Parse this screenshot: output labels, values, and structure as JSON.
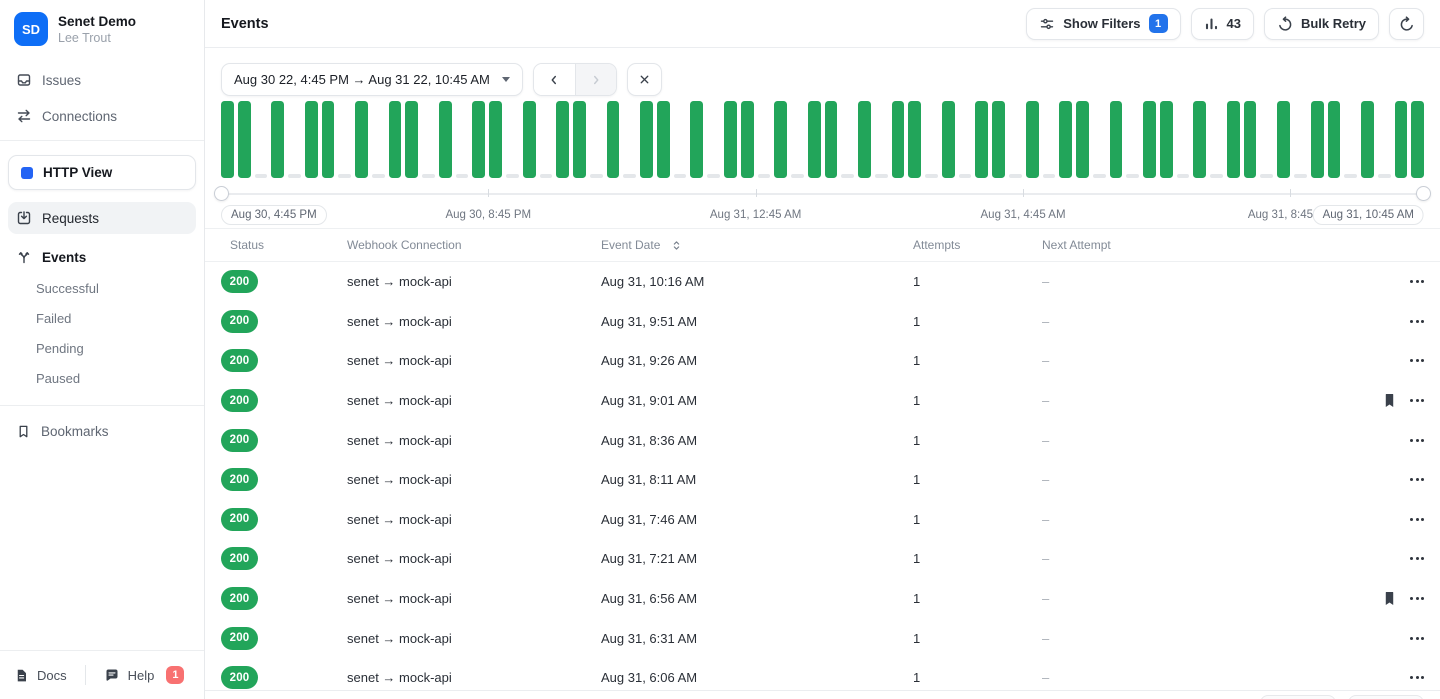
{
  "colors": {
    "brand_blue": "#0e6ef6",
    "accent_blue": "#2273eb",
    "success_green": "#22a55a",
    "empty_bar_gray": "#e4e7ea",
    "help_badge_red": "#f87171"
  },
  "sidebar": {
    "workspace": {
      "initials": "SD",
      "name": "Senet Demo",
      "user": "Lee Trout"
    },
    "nav_top": [
      {
        "label": "Issues",
        "icon": "inbox-icon"
      },
      {
        "label": "Connections",
        "icon": "transfer-icon"
      }
    ],
    "view_selector": {
      "label": "HTTP View",
      "icon": "blue-square"
    },
    "requests": {
      "label": "Requests",
      "icon": "tray-download-icon"
    },
    "events": {
      "label": "Events",
      "icon": "fork-icon"
    },
    "events_subnav": [
      {
        "label": "Successful"
      },
      {
        "label": "Failed"
      },
      {
        "label": "Pending"
      },
      {
        "label": "Paused"
      }
    ],
    "bookmarks": {
      "label": "Bookmarks",
      "icon": "bookmark-icon"
    },
    "footer": {
      "docs_label": "Docs",
      "help_label": "Help",
      "help_badge": "1"
    }
  },
  "topbar": {
    "title": "Events",
    "show_filters_label": "Show Filters",
    "show_filters_badge": "1",
    "chart_count": "43",
    "bulk_retry_label": "Bulk Retry"
  },
  "controls": {
    "date_range": "Aug 30 22, 4:45 PM → Aug 31 22, 10:45 AM"
  },
  "chart_data": {
    "type": "bar",
    "description": "Event volume over selected range; full-height green bar = 15-min bucket containing events, gray stub = empty bucket",
    "x_range": [
      "Aug 30 22, 4:45 PM",
      "Aug 31 22, 10:45 AM"
    ],
    "bar_color": "#22a55a",
    "empty_color": "#e4e7ea",
    "buckets": [
      1,
      1,
      0,
      1,
      0,
      1,
      1,
      0,
      1,
      0,
      1,
      1,
      0,
      1,
      0,
      1,
      1,
      0,
      1,
      0,
      1,
      1,
      0,
      1,
      0,
      1,
      1,
      0,
      1,
      0,
      1,
      1,
      0,
      1,
      0,
      1,
      1,
      0,
      1,
      0,
      1,
      1,
      0,
      1,
      0,
      1,
      1,
      0,
      1,
      0,
      1,
      1,
      0,
      1,
      0,
      1,
      1,
      0,
      1,
      0,
      1,
      1,
      0,
      1,
      0,
      1,
      1,
      0,
      1,
      0,
      1,
      1
    ],
    "tick_positions": [
      22.22,
      44.44,
      66.67,
      88.89
    ],
    "x_labels": [
      {
        "text": "Aug 30, 4:45 PM",
        "pos": 0,
        "pill": true
      },
      {
        "text": "Aug 30, 8:45 PM",
        "pos": 22.22,
        "pill": false
      },
      {
        "text": "Aug 31, 12:45 AM",
        "pos": 44.44,
        "pill": false
      },
      {
        "text": "Aug 31, 4:45 AM",
        "pos": 66.67,
        "pill": false
      },
      {
        "text": "Aug 31, 8:45 AM",
        "pos": 88.89,
        "pill": false
      },
      {
        "text": "Aug 31, 10:45 AM",
        "pos": 100,
        "pill": true
      }
    ]
  },
  "table": {
    "columns": [
      "Status",
      "Webhook Connection",
      "Event Date",
      "Attempts",
      "Next Attempt"
    ],
    "rows": [
      {
        "status": "200",
        "connection": "senet → mock-api",
        "event_date": "Aug 31, 10:16 AM",
        "attempts": "1",
        "next_attempt": "–",
        "bookmarked": false
      },
      {
        "status": "200",
        "connection": "senet → mock-api",
        "event_date": "Aug 31, 9:51 AM",
        "attempts": "1",
        "next_attempt": "–",
        "bookmarked": false
      },
      {
        "status": "200",
        "connection": "senet → mock-api",
        "event_date": "Aug 31, 9:26 AM",
        "attempts": "1",
        "next_attempt": "–",
        "bookmarked": false
      },
      {
        "status": "200",
        "connection": "senet → mock-api",
        "event_date": "Aug 31, 9:01 AM",
        "attempts": "1",
        "next_attempt": "–",
        "bookmarked": true
      },
      {
        "status": "200",
        "connection": "senet → mock-api",
        "event_date": "Aug 31, 8:36 AM",
        "attempts": "1",
        "next_attempt": "–",
        "bookmarked": false
      },
      {
        "status": "200",
        "connection": "senet → mock-api",
        "event_date": "Aug 31, 8:11 AM",
        "attempts": "1",
        "next_attempt": "–",
        "bookmarked": false
      },
      {
        "status": "200",
        "connection": "senet → mock-api",
        "event_date": "Aug 31, 7:46 AM",
        "attempts": "1",
        "next_attempt": "–",
        "bookmarked": false
      },
      {
        "status": "200",
        "connection": "senet → mock-api",
        "event_date": "Aug 31, 7:21 AM",
        "attempts": "1",
        "next_attempt": "–",
        "bookmarked": false
      },
      {
        "status": "200",
        "connection": "senet → mock-api",
        "event_date": "Aug 31, 6:56 AM",
        "attempts": "1",
        "next_attempt": "–",
        "bookmarked": true
      },
      {
        "status": "200",
        "connection": "senet → mock-api",
        "event_date": "Aug 31, 6:31 AM",
        "attempts": "1",
        "next_attempt": "–",
        "bookmarked": false
      },
      {
        "status": "200",
        "connection": "senet → mock-api",
        "event_date": "Aug 31, 6:06 AM",
        "attempts": "1",
        "next_attempt": "–",
        "bookmarked": false
      }
    ]
  }
}
